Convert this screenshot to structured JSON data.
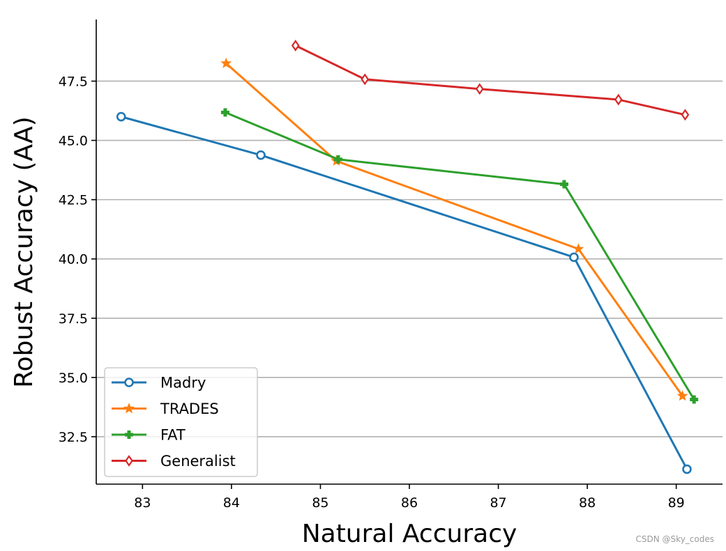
{
  "chart_data": {
    "type": "line",
    "xlabel": "Natural Accuracy",
    "ylabel": "Robust Accuracy (AA)",
    "xlim": [
      82.48,
      89.52
    ],
    "ylim": [
      30.5,
      50.1
    ],
    "x_ticks": [
      83,
      84,
      85,
      86,
      87,
      88,
      89
    ],
    "y_ticks": [
      32.5,
      35.0,
      37.5,
      40.0,
      42.5,
      45.0,
      47.5
    ],
    "grid": "horizontal",
    "legend_position": "lower-left",
    "series": [
      {
        "name": "Madry",
        "color": "#1f77b4",
        "marker": "circle",
        "x": [
          82.76,
          84.33,
          87.85,
          89.12
        ],
        "y": [
          46.0,
          44.38,
          40.07,
          31.13
        ]
      },
      {
        "name": "TRADES",
        "color": "#ff7f0e",
        "marker": "star",
        "x": [
          83.94,
          85.18,
          87.9,
          89.07
        ],
        "y": [
          48.25,
          44.13,
          40.42,
          34.22
        ]
      },
      {
        "name": "FAT",
        "color": "#2ca02c",
        "marker": "plus",
        "x": [
          83.93,
          85.2,
          87.74,
          89.2
        ],
        "y": [
          46.18,
          44.2,
          43.15,
          34.07
        ]
      },
      {
        "name": "Generalist",
        "color": "#d62728",
        "marker": "diamond",
        "x": [
          84.72,
          85.5,
          86.79,
          88.35,
          89.1
        ],
        "y": [
          49.0,
          47.58,
          47.17,
          46.72,
          46.08
        ]
      }
    ]
  },
  "watermark": "CSDN @Sky_codes"
}
